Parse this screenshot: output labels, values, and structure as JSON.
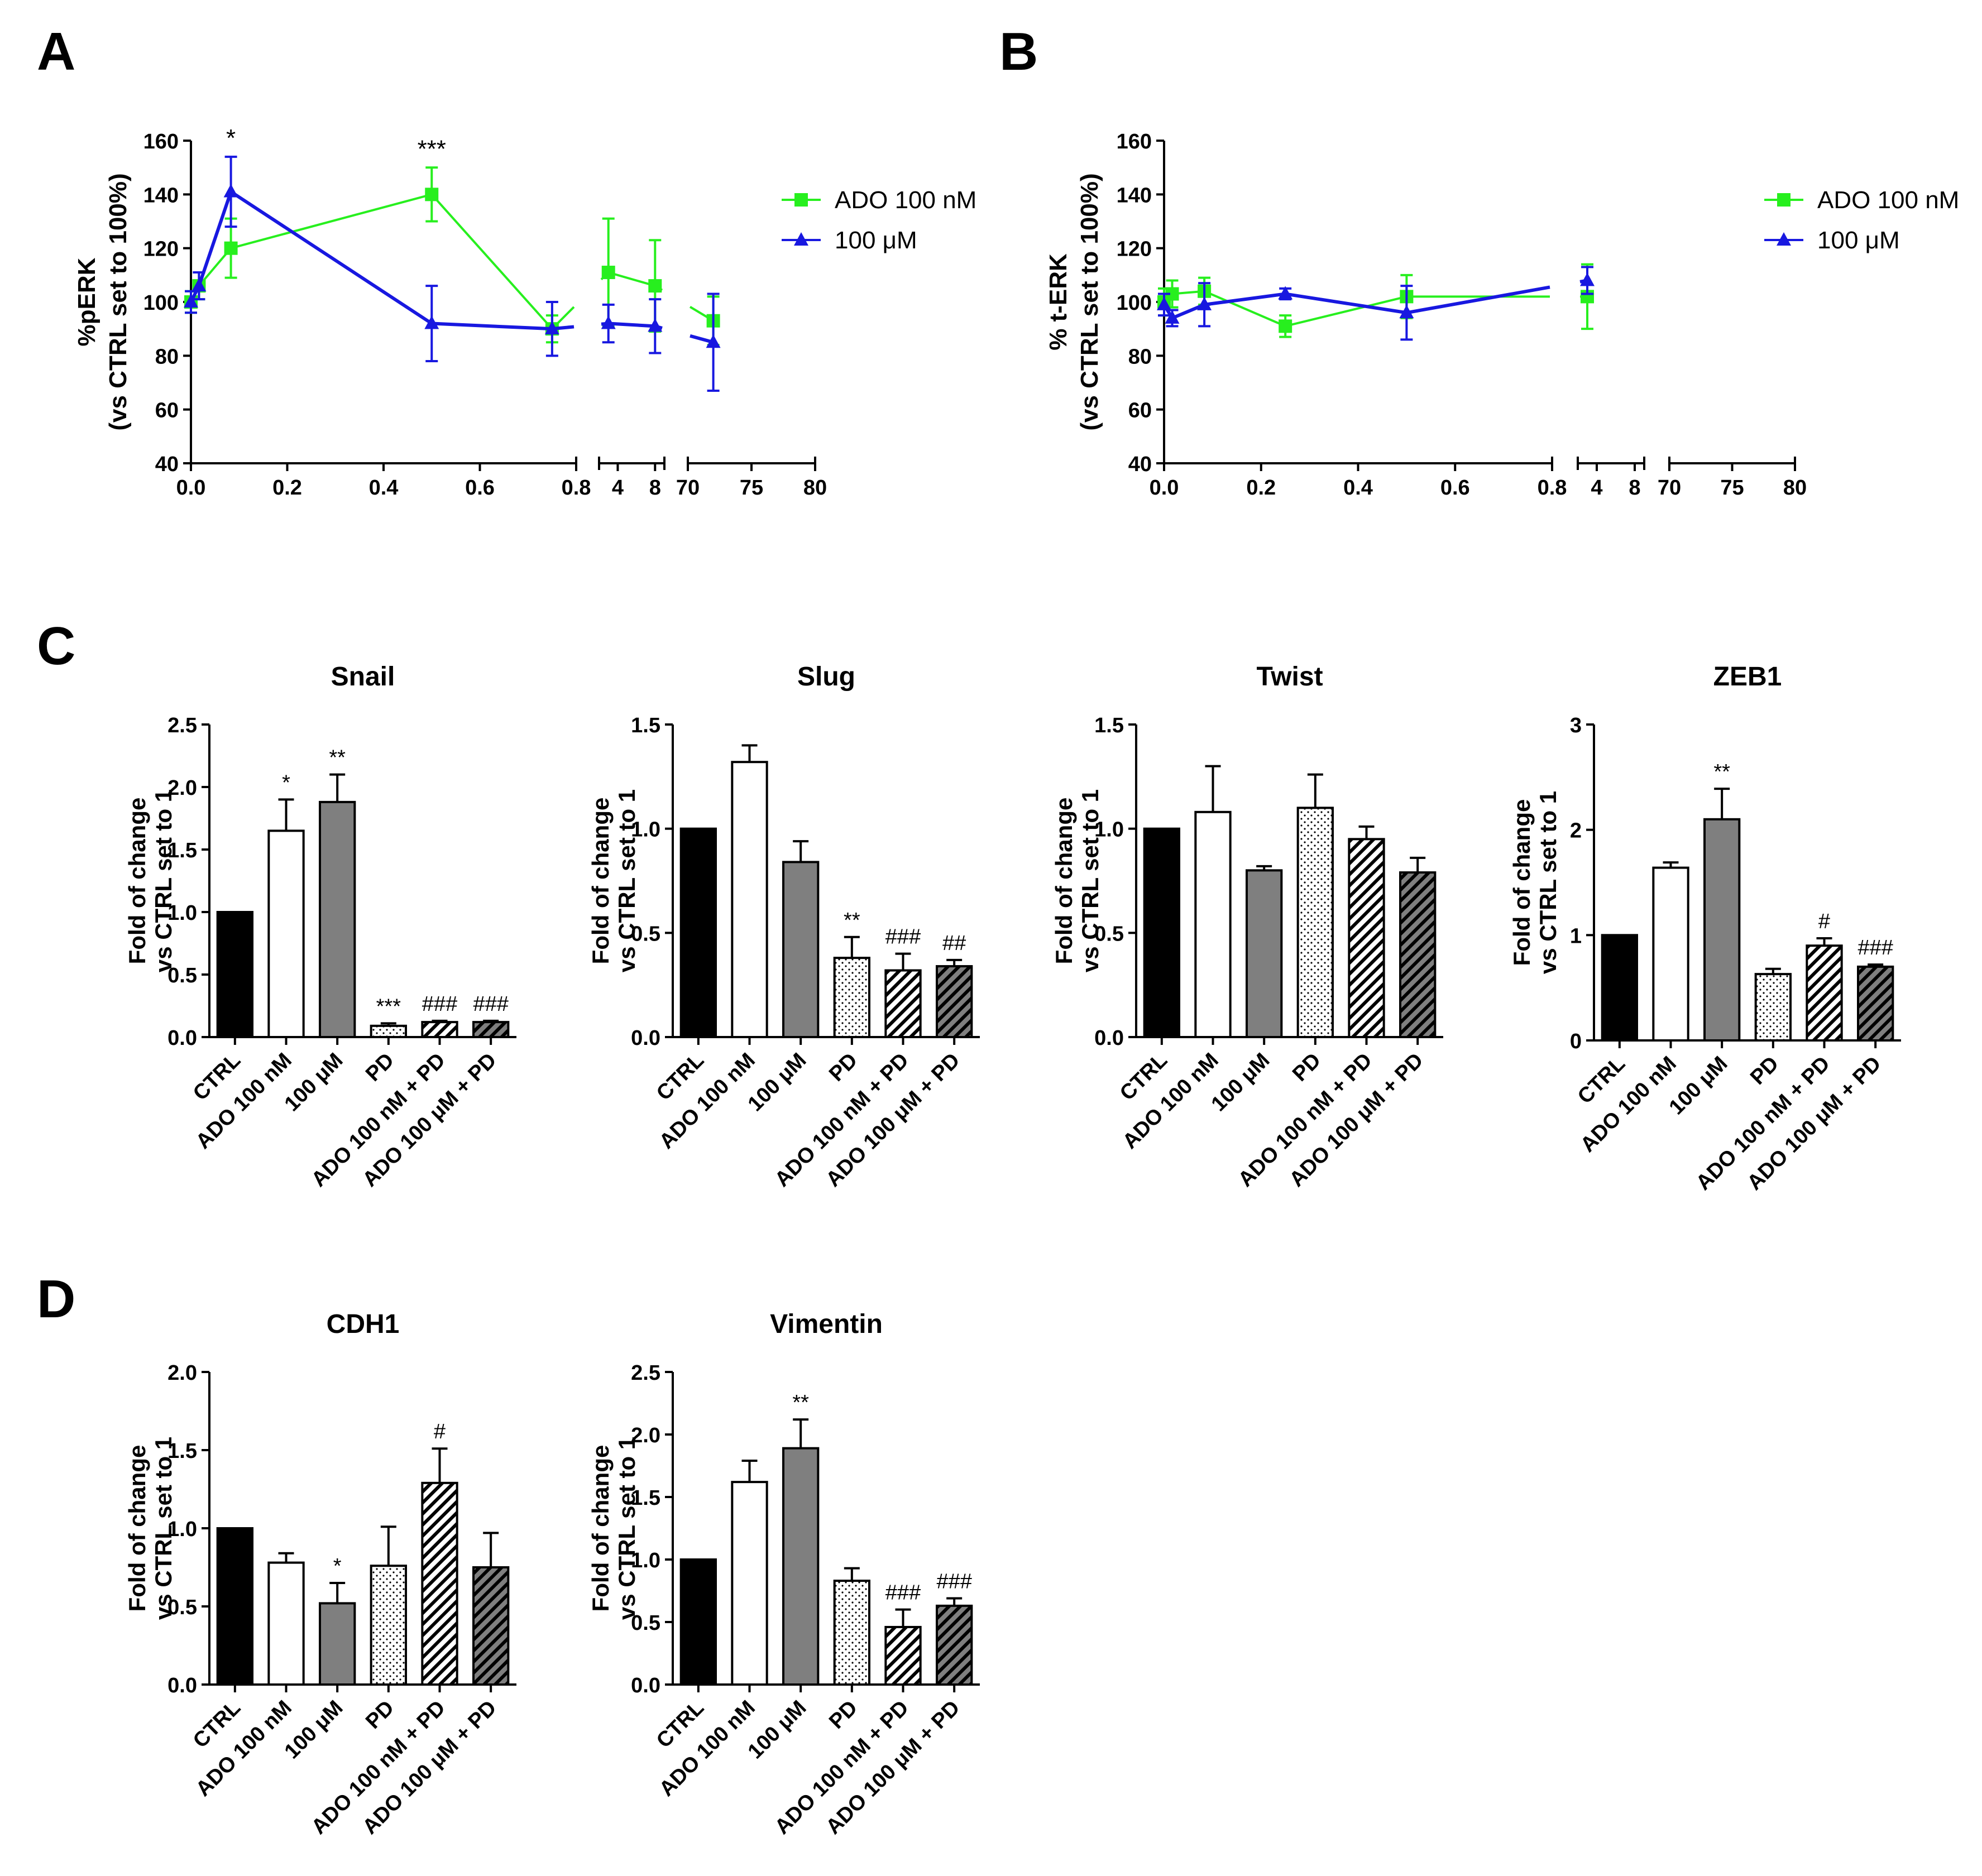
{
  "figure": {
    "panel_labels": {
      "A": "A",
      "B": "B",
      "C": "C",
      "D": "D"
    },
    "colors": {
      "green": "#27ef1e",
      "blue": "#1818e0",
      "black": "#000000",
      "grey": "#7f7f7f",
      "white": "#ffffff"
    }
  },
  "chart_data": [
    {
      "panel": "A",
      "type": "line",
      "ylabel_line1": "%pERK",
      "ylabel_line2": "(vs CTRL set to 100%)",
      "y_ticks": [
        "40",
        "60",
        "80",
        "100",
        "120",
        "140",
        "160"
      ],
      "ylim": [
        40,
        160
      ],
      "x_segments": [
        {
          "range": [
            0,
            0.8
          ],
          "ticks": [
            "0.0",
            "0.2",
            "0.4",
            "0.6",
            "0.8"
          ]
        },
        {
          "range": [
            2,
            9
          ],
          "ticks": [
            "4",
            "8"
          ]
        },
        {
          "range": [
            70,
            80
          ],
          "ticks": [
            "70",
            "75",
            "80"
          ]
        }
      ],
      "series": [
        {
          "name": "ADO 100 nM",
          "color": "#27ef1e",
          "marker": "square",
          "x": [
            0,
            0.0167,
            0.083,
            0.5,
            0.75,
            3,
            8,
            72
          ],
          "y": [
            100,
            106,
            120,
            140,
            90,
            111,
            106,
            93
          ],
          "err": [
            4,
            5,
            11,
            10,
            5,
            20,
            17,
            9
          ]
        },
        {
          "name": "100 μM",
          "color": "#1818e0",
          "marker": "triangle",
          "x": [
            0,
            0.0167,
            0.083,
            0.5,
            0.75,
            3,
            8,
            72
          ],
          "y": [
            100,
            106,
            141,
            92,
            90,
            92,
            91,
            85
          ],
          "err": [
            4,
            5,
            13,
            14,
            10,
            7,
            10,
            18
          ]
        }
      ],
      "annotations": [
        {
          "x": 0.083,
          "y": 160,
          "text": "*"
        },
        {
          "x": 0.5,
          "y": 156,
          "text": "***"
        }
      ]
    },
    {
      "panel": "B",
      "type": "line",
      "ylabel_line1": "% t-ERK",
      "ylabel_line2": "(vs CTRL set to 100%)",
      "y_ticks": [
        "40",
        "60",
        "80",
        "100",
        "120",
        "140",
        "160"
      ],
      "ylim": [
        40,
        160
      ],
      "x_segments": [
        {
          "range": [
            0,
            0.8
          ],
          "ticks": [
            "0.0",
            "0.2",
            "0.4",
            "0.6",
            "0.8"
          ]
        },
        {
          "range": [
            2,
            9
          ],
          "ticks": [
            "4",
            "8"
          ]
        },
        {
          "range": [
            70,
            80
          ],
          "ticks": [
            "70",
            "75",
            "80"
          ]
        }
      ],
      "series": [
        {
          "name": "ADO 100 nM",
          "color": "#27ef1e",
          "marker": "square",
          "x": [
            0,
            0.0167,
            0.083,
            0.25,
            0.5,
            3
          ],
          "y": [
            100,
            103,
            104,
            91,
            102,
            102
          ],
          "err": [
            5,
            5,
            5,
            4,
            8,
            12
          ]
        },
        {
          "name": "100 μM",
          "color": "#1818e0",
          "marker": "triangle",
          "x": [
            0,
            0.0167,
            0.083,
            0.25,
            0.5,
            3
          ],
          "y": [
            99,
            94,
            99,
            103,
            96,
            108
          ],
          "err": [
            4,
            3,
            8,
            2,
            10,
            5
          ]
        }
      ]
    },
    {
      "panel": "C",
      "type": "bar",
      "title": "Snail",
      "ylabel_line1": "Fold of change",
      "ylabel_line2": "vs CTRL set to 1",
      "categories": [
        "CTRL",
        "ADO 100 nM",
        "100 μM",
        "PD",
        "ADO 100 nM + PD",
        "ADO 100 μM + PD"
      ],
      "values": [
        1.0,
        1.65,
        1.88,
        0.09,
        0.12,
        0.12
      ],
      "errors": [
        0,
        0.25,
        0.22,
        0.02,
        0.01,
        0.01
      ],
      "annotations": [
        "",
        "*",
        "**",
        "***",
        "###",
        "###"
      ],
      "y_ticks": [
        "0.0",
        "0.5",
        "1.0",
        "1.5",
        "2.0",
        "2.5"
      ],
      "ylim": [
        0,
        2.5
      ]
    },
    {
      "panel": "C",
      "type": "bar",
      "title": "Slug",
      "ylabel_line1": "Fold of change",
      "ylabel_line2": "vs CTRL set to 1",
      "categories": [
        "CTRL",
        "ADO 100 nM",
        "100 μM",
        "PD",
        "ADO 100 nM + PD",
        "ADO 100 μM + PD"
      ],
      "values": [
        1.0,
        1.32,
        0.84,
        0.38,
        0.32,
        0.34
      ],
      "errors": [
        0,
        0.08,
        0.1,
        0.1,
        0.08,
        0.03
      ],
      "annotations": [
        "",
        "",
        "",
        "**",
        "###",
        "##"
      ],
      "y_ticks": [
        "0.0",
        "0.5",
        "1.0",
        "1.5"
      ],
      "ylim": [
        0,
        1.5
      ]
    },
    {
      "panel": "C",
      "type": "bar",
      "title": "Twist",
      "ylabel_line1": "Fold of change",
      "ylabel_line2": "vs CTRL set to 1",
      "categories": [
        "CTRL",
        "ADO 100 nM",
        "100 μM",
        "PD",
        "ADO 100 nM + PD",
        "ADO 100 μM + PD"
      ],
      "values": [
        1.0,
        1.08,
        0.8,
        1.1,
        0.95,
        0.79
      ],
      "errors": [
        0,
        0.22,
        0.02,
        0.16,
        0.06,
        0.07
      ],
      "annotations": [
        "",
        "",
        "",
        "",
        "",
        ""
      ],
      "y_ticks": [
        "0.0",
        "0.5",
        "1.0",
        "1.5"
      ],
      "ylim": [
        0,
        1.5
      ]
    },
    {
      "panel": "C",
      "type": "bar",
      "title": "ZEB1",
      "ylabel_line1": "Fold of change",
      "ylabel_line2": "vs CTRL set to 1",
      "categories": [
        "CTRL",
        "ADO 100 nM",
        "100 μM",
        "PD",
        "ADO 100 nM + PD",
        "ADO 100 μM + PD"
      ],
      "values": [
        1.0,
        1.64,
        2.1,
        0.63,
        0.9,
        0.7
      ],
      "errors": [
        0,
        0.05,
        0.29,
        0.05,
        0.07,
        0.02
      ],
      "annotations": [
        "",
        "",
        "**",
        "",
        "#",
        "###"
      ],
      "y_ticks": [
        "0",
        "1",
        "2",
        "3"
      ],
      "ylim": [
        0,
        3
      ]
    },
    {
      "panel": "D",
      "type": "bar",
      "title": "CDH1",
      "ylabel_line1": "Fold of change",
      "ylabel_line2": "vs CTRL set to 1",
      "categories": [
        "CTRL",
        "ADO 100 nM",
        "100 μM",
        "PD",
        "ADO 100 nM + PD",
        "ADO 100 μM + PD"
      ],
      "values": [
        1.0,
        0.78,
        0.52,
        0.76,
        1.29,
        0.75
      ],
      "errors": [
        0,
        0.06,
        0.13,
        0.25,
        0.22,
        0.22
      ],
      "annotations": [
        "",
        "",
        "*",
        "",
        "#",
        ""
      ],
      "y_ticks": [
        "0.0",
        "0.5",
        "1.0",
        "1.5",
        "2.0"
      ],
      "ylim": [
        0,
        2
      ]
    },
    {
      "panel": "D",
      "type": "bar",
      "title": "Vimentin",
      "ylabel_line1": "Fold of change",
      "ylabel_line2": "vs CTRL set to 1",
      "categories": [
        "CTRL",
        "ADO 100 nM",
        "100 μM",
        "PD",
        "ADO 100 nM + PD",
        "ADO 100 μM + PD"
      ],
      "values": [
        1.0,
        1.62,
        1.89,
        0.83,
        0.46,
        0.63
      ],
      "errors": [
        0,
        0.17,
        0.23,
        0.1,
        0.14,
        0.06
      ],
      "annotations": [
        "",
        "",
        "**",
        "",
        "###",
        "###"
      ],
      "y_ticks": [
        "0.0",
        "0.5",
        "1.0",
        "1.5",
        "2.0",
        "2.5"
      ],
      "ylim": [
        0,
        2.5
      ]
    }
  ]
}
